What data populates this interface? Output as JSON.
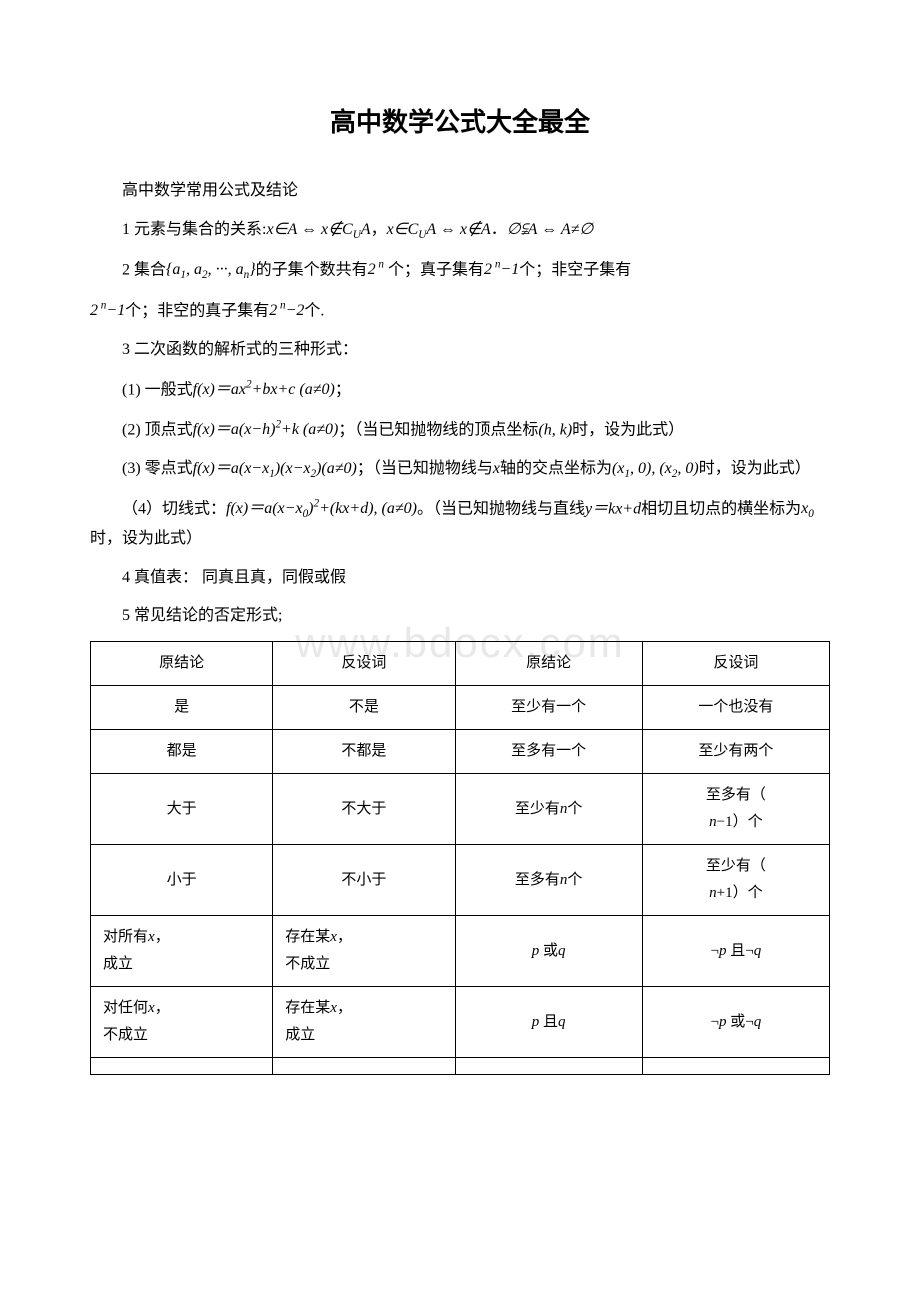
{
  "title": "高中数学公式大全最全",
  "subtitle": "高中数学常用公式及结论",
  "item1_prefix": "1 元素与集合的关系:",
  "item1_math1": "x∈A ⇔ x∉C<sub>U</sub>A",
  "item1_comma": "，",
  "item1_math2": "x∈C<sub>U</sub>A ⇔ x∉A",
  "item1_period": "．",
  "item1_math3": "∅⫋A ⇔ A≠∅",
  "item2_prefix": "2 集合",
  "item2_set": "{a<sub>1</sub>, a<sub>2</sub>, ···, a<sub>n</sub>}",
  "item2_mid1": "的子集个数共有",
  "item2_exp1": "2<sup> n</sup>",
  "item2_mid2": " 个；真子集有",
  "item2_exp2": "2<sup> n</sup>−1",
  "item2_mid3": "个；非空子集有",
  "item2_exp3": "2<sup> n</sup>−1",
  "item2_mid4": "个；非空的真子集有",
  "item2_exp4": "2<sup> n</sup>−2",
  "item2_mid5": "个.",
  "item3": "3 二次函数的解析式的三种形式：",
  "item3_1_label": "(1) 一般式",
  "item3_1_math": "f(x)＝ax<sup>2</sup>+bx+c (a≠0)",
  "item3_1_end": "；",
  "item3_2_label": "(2) 顶点式",
  "item3_2_math": "f(x)＝a(x−h)<sup>2</sup>+k (a≠0)",
  "item3_2_mid": "；（当已知抛物线的顶点坐标",
  "item3_2_hk": "(h, k)",
  "item3_2_end": "时，设为此式）",
  "item3_3_label": "(3) 零点式",
  "item3_3_math": "f(x)＝a(x−x<sub>1</sub>)(x−x<sub>2</sub>)(a≠0)",
  "item3_3_mid": "；（当已知抛物线与",
  "item3_3_x": "x",
  "item3_3_mid2": "轴的交点坐标为",
  "item3_3_pts": "(x<sub>1</sub>, 0), (x<sub>2</sub>, 0)",
  "item3_3_end": "时，设为此式）",
  "item3_4_label": "（4）切线式：",
  "item3_4_math": "f(x)＝a(x−x<sub>0</sub>)<sup>2</sup>+(kx+d), (a≠0)",
  "item3_4_mid": "。（当已知抛物线与直线",
  "item3_4_line": "y＝kx+d",
  "item3_4_mid2": "相切且切点的横坐标为",
  "item3_4_x0": "x<sub>0</sub>",
  "item3_4_end": "时，设为此式）",
  "item4": "4 真值表： 同真且真，同假或假",
  "item5": "5 常见结论的否定形式;",
  "watermark": "www.bdocx.com",
  "table": {
    "headers": [
      "原结论",
      "反设词",
      "原结论",
      "反设词"
    ],
    "rows": [
      [
        "是",
        "不是",
        "至少有一个",
        "一个也没有"
      ],
      [
        "都是",
        "不都是",
        "至多有一个",
        "至少有两个"
      ],
      [
        "大于",
        "不大于",
        "至少有<span class='math'>n</span>个",
        "至多有（<br><span class='math'>n</span>−1）个"
      ],
      [
        "小于",
        "不小于",
        "至多有<span class='math'>n</span>个",
        "至少有（<br><span class='math'>n</span>+1）个"
      ],
      [
        "对所有<span class='math'>x</span>，<br>成立",
        "存在某<span class='math'>x</span>，<br>不成立",
        "<span class='math'>p</span> 或<span class='math'>q</span>",
        "¬<span class='math'>p</span> 且¬<span class='math'>q</span>"
      ],
      [
        "对任何<span class='math'>x</span>，<br>不成立",
        "存在某<span class='math'>x</span>，<br>成立",
        "<span class='math'>p</span> 且<span class='math'>q</span>",
        "¬<span class='math'>p</span> 或¬<span class='math'>q</span>"
      ],
      [
        "",
        "",
        "",
        ""
      ]
    ]
  }
}
